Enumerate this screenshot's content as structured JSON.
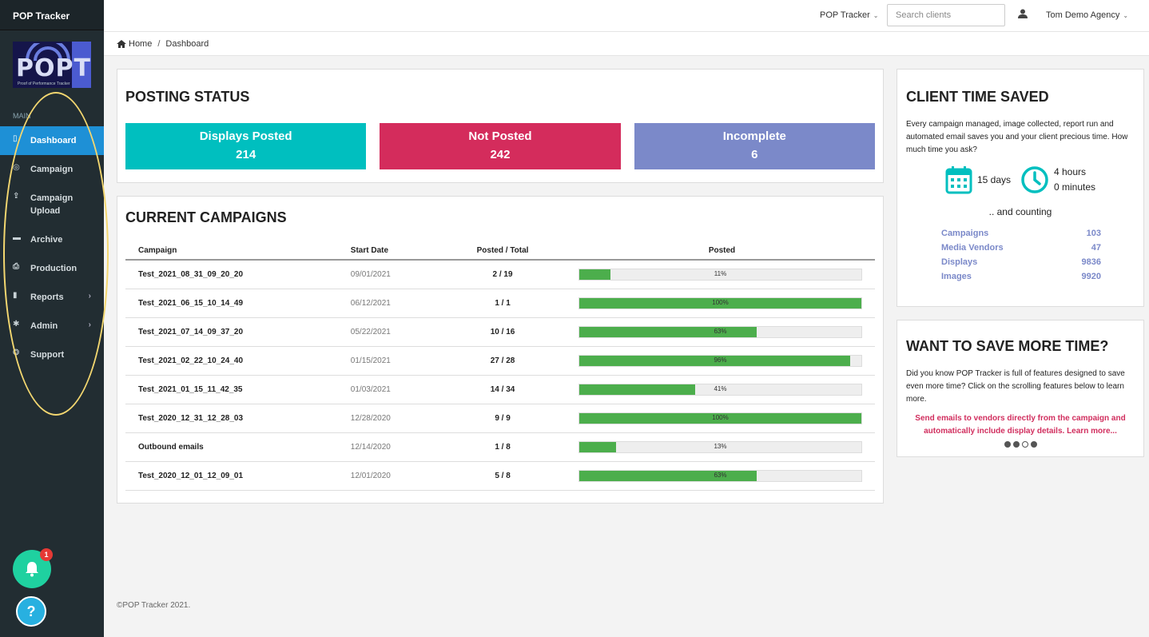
{
  "app": {
    "brand": "POP Tracker"
  },
  "logo": {
    "text": "POPT",
    "subtitle": "Proof of Performance Tracker"
  },
  "sidebar": {
    "section_label": "MAIN",
    "items": [
      {
        "label": "Dashboard",
        "icon": "file-icon"
      },
      {
        "label": "Campaign",
        "icon": "target-icon"
      },
      {
        "label": "Campaign Upload",
        "icon": "upload-icon"
      },
      {
        "label": "Archive",
        "icon": "archive-icon"
      },
      {
        "label": "Production",
        "icon": "print-icon"
      },
      {
        "label": "Reports",
        "icon": "file-icon"
      },
      {
        "label": "Admin",
        "icon": "gear-icon"
      },
      {
        "label": "Support",
        "icon": "lifering-icon"
      }
    ],
    "notification_count": "1",
    "help_label": "?"
  },
  "topbar": {
    "app_menu": "POP Tracker",
    "search_placeholder": "Search clients",
    "user": "Tom Demo Agency"
  },
  "breadcrumb": {
    "home": "Home",
    "current": "Dashboard"
  },
  "posting_status": {
    "title": "POSTING STATUS",
    "cards": [
      {
        "label": "Displays Posted",
        "value": "214",
        "color": "#00bfbf"
      },
      {
        "label": "Not Posted",
        "value": "242",
        "color": "#d42c5c"
      },
      {
        "label": "Incomplete",
        "value": "6",
        "color": "#7b89c9"
      }
    ]
  },
  "campaigns": {
    "title": "CURRENT CAMPAIGNS",
    "columns": [
      "Campaign",
      "Start Date",
      "Posted / Total",
      "Posted"
    ],
    "rows": [
      {
        "name": "Test_2021_08_31_09_20_20",
        "date": "09/01/2021",
        "frac": "2 / 19",
        "pct": 11,
        "pct_label": "11%"
      },
      {
        "name": "Test_2021_06_15_10_14_49",
        "date": "06/12/2021",
        "frac": "1 / 1",
        "pct": 100,
        "pct_label": "100%"
      },
      {
        "name": "Test_2021_07_14_09_37_20",
        "date": "05/22/2021",
        "frac": "10 / 16",
        "pct": 63,
        "pct_label": "63%"
      },
      {
        "name": "Test_2021_02_22_10_24_40",
        "date": "01/15/2021",
        "frac": "27 / 28",
        "pct": 96,
        "pct_label": "96%"
      },
      {
        "name": "Test_2021_01_15_11_42_35",
        "date": "01/03/2021",
        "frac": "14 / 34",
        "pct": 41,
        "pct_label": "41%"
      },
      {
        "name": "Test_2020_12_31_12_28_03",
        "date": "12/28/2020",
        "frac": "9 / 9",
        "pct": 100,
        "pct_label": "100%"
      },
      {
        "name": "Outbound emails",
        "date": "12/14/2020",
        "frac": "1 / 8",
        "pct": 13,
        "pct_label": "13%"
      },
      {
        "name": "Test_2020_12_01_12_09_01",
        "date": "12/01/2020",
        "frac": "5 / 8",
        "pct": 63,
        "pct_label": "63%"
      }
    ]
  },
  "time_saved": {
    "title": "CLIENT TIME SAVED",
    "description": "Every campaign managed, image collected, report run and automated email saves you and your client precious time. How much time you ask?",
    "days": "15 days",
    "hours": "4 hours",
    "minutes": "0 minutes",
    "counting": ".. and counting",
    "stats": [
      {
        "label": "Campaigns",
        "value": "103"
      },
      {
        "label": "Media Vendors",
        "value": "47"
      },
      {
        "label": "Displays",
        "value": "9836"
      },
      {
        "label": "Images",
        "value": "9920"
      }
    ]
  },
  "save_more": {
    "title": "WANT TO SAVE MORE TIME?",
    "description": "Did you know POP Tracker is full of features designed to save even more time? Click on the scrolling features below to learn more.",
    "promo": "Send emails to vendors directly from the campaign and automatically include display details. Learn more...",
    "carousel_active": 3,
    "carousel_count": 4
  },
  "footer": "©POP Tracker 2021.",
  "colors": {
    "sidebar": "#222d32",
    "active": "#1e90d6",
    "accent": "#00bfbf",
    "progress": "#4cae4c"
  }
}
